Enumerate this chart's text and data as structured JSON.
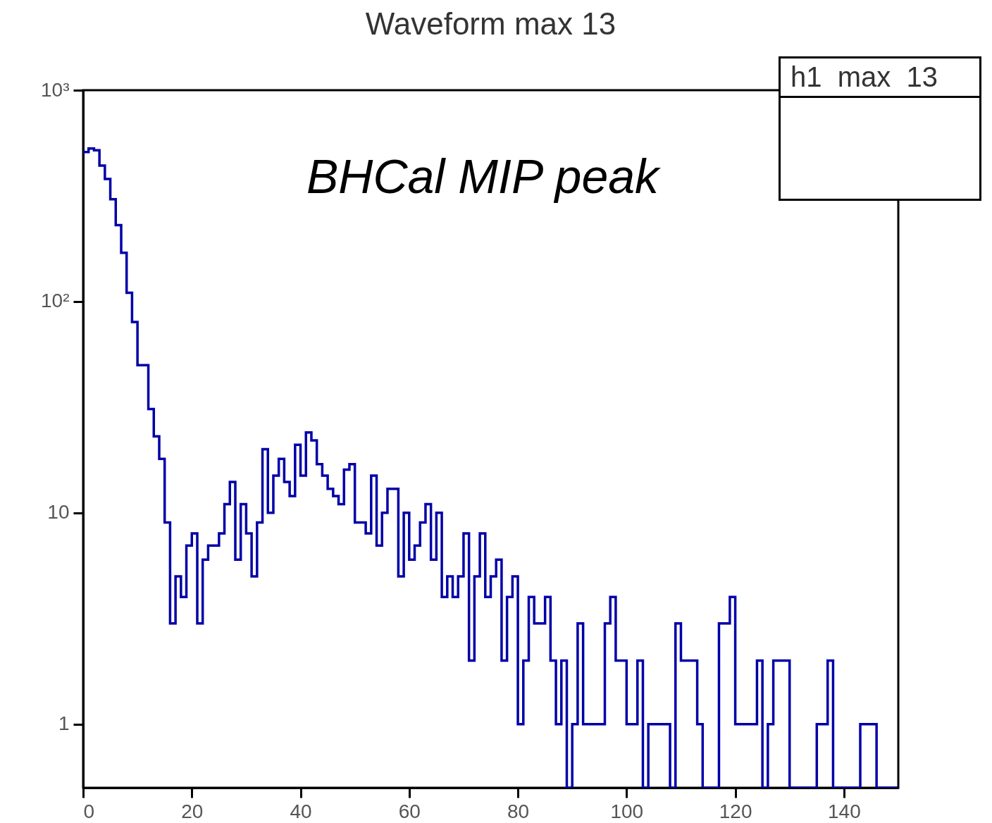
{
  "chart_data": {
    "type": "histogram",
    "title": "Waveform max 13",
    "bins": [
      0,
      1,
      2,
      3,
      4,
      5,
      6,
      7,
      8,
      9,
      10,
      11,
      12,
      13,
      14,
      15,
      16,
      17,
      18,
      19,
      20,
      21,
      22,
      23,
      24,
      25,
      26,
      27,
      28,
      29,
      30,
      31,
      32,
      33,
      34,
      35,
      36,
      37,
      38,
      39,
      40,
      41,
      42,
      43,
      44,
      45,
      46,
      47,
      48,
      49,
      50,
      51,
      52,
      53,
      54,
      55,
      56,
      57,
      58,
      59,
      60,
      61,
      62,
      63,
      64,
      65,
      66,
      67,
      68,
      69,
      70,
      71,
      72,
      73,
      74,
      75,
      76,
      77,
      78,
      79,
      80,
      81,
      82,
      83,
      84,
      85,
      86,
      87,
      88,
      89,
      90,
      91,
      92,
      93,
      94,
      95,
      96,
      97,
      98,
      99,
      100,
      101,
      102,
      103,
      104,
      105,
      106,
      107,
      108,
      109,
      110,
      111,
      112,
      113,
      114,
      115,
      116,
      117,
      118,
      119,
      120,
      121,
      122,
      123,
      124,
      125,
      126,
      127,
      128,
      129,
      130,
      131,
      132,
      133,
      134,
      135,
      136,
      137,
      138,
      139,
      140,
      141,
      142,
      143,
      144,
      145,
      146,
      147,
      148,
      149,
      150
    ],
    "values": [
      510,
      530,
      520,
      440,
      380,
      305,
      230,
      170,
      110,
      80,
      50,
      50,
      31,
      23,
      18,
      9,
      3,
      5,
      4,
      7,
      8,
      3,
      6,
      7,
      7,
      8,
      11,
      14,
      6,
      11,
      8,
      5,
      9,
      20,
      10,
      15,
      18,
      14,
      12,
      21,
      15,
      24,
      22,
      17,
      15,
      13,
      12,
      11,
      16,
      17,
      9,
      9,
      8,
      15,
      7,
      10,
      13,
      13,
      5,
      10,
      6,
      7,
      9,
      11,
      6,
      10,
      4,
      5,
      4,
      5,
      8,
      2,
      5,
      8,
      4,
      5,
      6,
      2,
      4,
      5,
      1,
      2,
      4,
      3,
      3,
      4,
      2,
      1,
      2,
      null,
      1,
      3,
      1,
      1,
      1,
      1,
      3,
      4,
      2,
      2,
      1,
      1,
      2,
      null,
      1,
      1,
      1,
      1,
      null,
      3,
      2,
      2,
      2,
      1,
      null,
      null,
      null,
      3,
      3,
      4,
      1,
      1,
      1,
      1,
      2,
      null,
      1,
      2,
      2,
      2,
      null,
      null,
      null,
      null,
      null,
      1,
      1,
      2,
      null,
      null,
      null,
      null,
      null,
      1,
      1,
      1,
      null,
      null,
      null,
      null
    ],
    "color": "#0000a8",
    "xlim": [
      0,
      150
    ],
    "xticks": [
      0,
      20,
      40,
      60,
      80,
      100,
      120,
      140
    ],
    "ylim": [
      0.5,
      1000
    ],
    "yticks": [
      1,
      10,
      {
        "value": 100,
        "label": "10²"
      },
      {
        "value": 1000,
        "label": "10³"
      }
    ],
    "log": true,
    "annotations": [
      "BHCal MIP peak",
      "h1  max  13"
    ]
  }
}
